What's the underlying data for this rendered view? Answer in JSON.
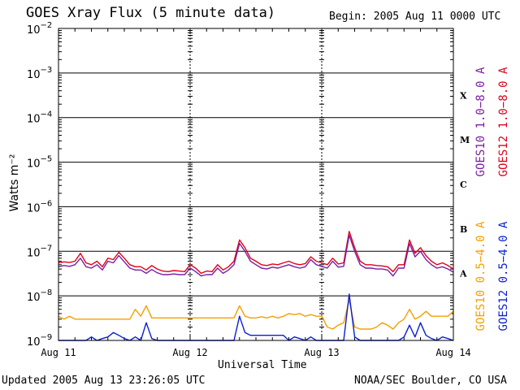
{
  "header": {
    "title": "GOES Xray Flux (5 minute data)",
    "begin": "Begin:  2005 Aug 11 0000 UTC"
  },
  "footer": {
    "updated": "Updated 2005 Aug 13 23:26:05 UTC",
    "credit": "NOAA/SEC Boulder, CO USA"
  },
  "colors": {
    "goes10_long": "#7a1fa2",
    "goes12_long": "#e0001b",
    "goes10_short": "#f5a000",
    "goes12_short": "#0a1fd6",
    "frame": "#000000"
  },
  "chart_data": {
    "type": "line",
    "title": "GOES Xray Flux (5 minute data)",
    "xlabel": "Universal Time",
    "ylabel": "Watts m⁻²",
    "y_scale": "log",
    "ylim": [
      1e-09,
      0.01
    ],
    "y_ticks": [
      {
        "value": 0.01,
        "base": "10",
        "exp": "−2"
      },
      {
        "value": 0.001,
        "base": "10",
        "exp": "−3"
      },
      {
        "value": 0.0001,
        "base": "10",
        "exp": "−4"
      },
      {
        "value": 1e-05,
        "base": "10",
        "exp": "−5"
      },
      {
        "value": 1e-06,
        "base": "10",
        "exp": "−6"
      },
      {
        "value": 1e-07,
        "base": "10",
        "exp": "−7"
      },
      {
        "value": 1e-08,
        "base": "10",
        "exp": "−8"
      },
      {
        "value": 1e-09,
        "base": "10",
        "exp": "−9"
      }
    ],
    "xlim": [
      0,
      72
    ],
    "x_ticks": [
      {
        "value": 0,
        "label": "Aug 11"
      },
      {
        "value": 24,
        "label": "Aug 12"
      },
      {
        "value": 48,
        "label": "Aug 13"
      },
      {
        "value": 72,
        "label": "Aug 14"
      }
    ],
    "class_labels": [
      {
        "value": 0.0001,
        "label": "X"
      },
      {
        "value": 1e-05,
        "label": "M"
      },
      {
        "value": 1e-06,
        "label": "C"
      },
      {
        "value": 1e-07,
        "label": "B"
      },
      {
        "value": 1e-08,
        "label": "A"
      }
    ],
    "legend_right": [
      {
        "text": "GOES10 1.0−8.0 A",
        "color": "#7a1fa2"
      },
      {
        "text": "GOES12 1.0−8.0 A",
        "color": "#e0001b"
      },
      {
        "text": "GOES10 0.5−4.0 A",
        "color": "#f5a000"
      },
      {
        "text": "GOES12 0.5−4.0 A",
        "color": "#0a1fd6"
      }
    ],
    "series": [
      {
        "name": "GOES12 1.0-8.0 A",
        "color": "#e0001b",
        "x": [
          0,
          1,
          2,
          3,
          4,
          5,
          6,
          7,
          8,
          9,
          10,
          11,
          12,
          13,
          14,
          15,
          16,
          17,
          18,
          19,
          20,
          21,
          22,
          23,
          24,
          25,
          26,
          27,
          28,
          29,
          30,
          31,
          32,
          33,
          34,
          35,
          36,
          37,
          38,
          39,
          40,
          41,
          42,
          43,
          44,
          45,
          46,
          47,
          48,
          49,
          50,
          51,
          52,
          53,
          54,
          55,
          56,
          57,
          58,
          59,
          60,
          61,
          62,
          63,
          64,
          65,
          66,
          67,
          68,
          69,
          70,
          71,
          72
        ],
        "y": [
          5.5e-08,
          5.8e-08,
          5.6e-08,
          6e-08,
          9e-08,
          5.5e-08,
          5e-08,
          6e-08,
          4.5e-08,
          7e-08,
          6.5e-08,
          9.5e-08,
          7e-08,
          5e-08,
          4.5e-08,
          4.5e-08,
          3.8e-08,
          4.8e-08,
          4e-08,
          3.6e-08,
          3.5e-08,
          3.7e-08,
          3.6e-08,
          3.5e-08,
          5e-08,
          4.2e-08,
          3.2e-08,
          3.6e-08,
          3.5e-08,
          5e-08,
          3.8e-08,
          4.5e-08,
          6e-08,
          1.8e-07,
          1.2e-07,
          7e-08,
          6e-08,
          5e-08,
          4.8e-08,
          5.2e-08,
          5e-08,
          5.5e-08,
          6e-08,
          5.3e-08,
          5e-08,
          5.3e-08,
          7.5e-08,
          6e-08,
          5.5e-08,
          5e-08,
          7e-08,
          5.2e-08,
          5.5e-08,
          2.8e-07,
          1.2e-07,
          6e-08,
          5e-08,
          5e-08,
          4.8e-08,
          4.7e-08,
          4.5e-08,
          3.5e-08,
          5e-08,
          5e-08,
          1.8e-07,
          9e-08,
          1.2e-07,
          8e-08,
          6e-08,
          5e-08,
          5.5e-08,
          4.8e-08,
          4e-08
        ]
      },
      {
        "name": "GOES10 1.0-8.0 A",
        "color": "#7a1fa2",
        "x": [
          0,
          1,
          2,
          3,
          4,
          5,
          6,
          7,
          8,
          9,
          10,
          11,
          12,
          13,
          14,
          15,
          16,
          17,
          18,
          19,
          20,
          21,
          22,
          23,
          24,
          25,
          26,
          27,
          28,
          29,
          30,
          31,
          32,
          33,
          34,
          35,
          36,
          37,
          38,
          39,
          40,
          41,
          42,
          43,
          44,
          45,
          46,
          47,
          48,
          49,
          50,
          51,
          52,
          53,
          54,
          55,
          56,
          57,
          58,
          59,
          60,
          61,
          62,
          63,
          64,
          65,
          66,
          67,
          68,
          69,
          70,
          71,
          72
        ],
        "y": [
          4.5e-08,
          4.8e-08,
          4.6e-08,
          5e-08,
          7e-08,
          4.5e-08,
          4.2e-08,
          5e-08,
          3.8e-08,
          6e-08,
          5.5e-08,
          8e-08,
          5.8e-08,
          4.2e-08,
          3.8e-08,
          3.8e-08,
          3.2e-08,
          3.9e-08,
          3.3e-08,
          3e-08,
          3e-08,
          3.1e-08,
          3e-08,
          3e-08,
          4.2e-08,
          3.5e-08,
          2.8e-08,
          3e-08,
          3e-08,
          4.2e-08,
          3.2e-08,
          3.8e-08,
          5e-08,
          1.5e-07,
          1e-07,
          6e-08,
          5e-08,
          4.2e-08,
          4e-08,
          4.4e-08,
          4.2e-08,
          4.6e-08,
          5e-08,
          4.5e-08,
          4.2e-08,
          4.5e-08,
          6.5e-08,
          5e-08,
          4.6e-08,
          4.2e-08,
          6e-08,
          4.4e-08,
          4.6e-08,
          2.3e-07,
          1e-07,
          5e-08,
          4.2e-08,
          4.2e-08,
          4e-08,
          4e-08,
          3.8e-08,
          2.8e-08,
          4.2e-08,
          4.2e-08,
          1.5e-07,
          7.5e-08,
          1e-07,
          6.5e-08,
          5e-08,
          4.2e-08,
          4.5e-08,
          4e-08,
          3.4e-08
        ]
      },
      {
        "name": "GOES10 0.5-4.0 A",
        "color": "#f5a000",
        "x": [
          0,
          1,
          2,
          3,
          4,
          5,
          6,
          7,
          8,
          9,
          10,
          11,
          12,
          13,
          14,
          15,
          16,
          17,
          18,
          19,
          20,
          21,
          22,
          23,
          24,
          25,
          26,
          27,
          28,
          29,
          30,
          31,
          32,
          33,
          34,
          35,
          36,
          37,
          38,
          39,
          40,
          41,
          42,
          43,
          44,
          45,
          46,
          47,
          48,
          49,
          50,
          51,
          52,
          53,
          54,
          55,
          56,
          57,
          58,
          59,
          60,
          61,
          62,
          63,
          64,
          65,
          66,
          67,
          68,
          69,
          70,
          71,
          72
        ],
        "y": [
          3.5e-09,
          3e-09,
          3.5e-09,
          3e-09,
          3e-09,
          3e-09,
          3e-09,
          3e-09,
          3e-09,
          3e-09,
          3e-09,
          3e-09,
          3e-09,
          3e-09,
          5e-09,
          3.5e-09,
          6e-09,
          3.2e-09,
          3.2e-09,
          3.2e-09,
          3.2e-09,
          3.2e-09,
          3.2e-09,
          3.2e-09,
          3.2e-09,
          3.2e-09,
          3.2e-09,
          3.2e-09,
          3.2e-09,
          3.2e-09,
          3.2e-09,
          3.2e-09,
          3.2e-09,
          6e-09,
          3.5e-09,
          3.2e-09,
          3.2e-09,
          3.4e-09,
          3.2e-09,
          3.5e-09,
          3.2e-09,
          3.5e-09,
          4e-09,
          3.8e-09,
          4e-09,
          3.5e-09,
          3.8e-09,
          3.5e-09,
          3.5e-09,
          2e-09,
          1.8e-09,
          2.2e-09,
          2.5e-09,
          8e-09,
          2e-09,
          1.8e-09,
          1.8e-09,
          1.8e-09,
          2e-09,
          2.5e-09,
          2.2e-09,
          1.8e-09,
          2.5e-09,
          3e-09,
          5e-09,
          3e-09,
          3.5e-09,
          4.5e-09,
          3.5e-09,
          3.5e-09,
          3.5e-09,
          3.5e-09,
          4.5e-09
        ]
      },
      {
        "name": "GOES12 0.5-4.0 A",
        "color": "#0a1fd6",
        "x": [
          0,
          1,
          2,
          3,
          4,
          5,
          6,
          7,
          8,
          9,
          10,
          11,
          12,
          13,
          14,
          15,
          16,
          17,
          18,
          19,
          20,
          21,
          22,
          23,
          24,
          25,
          26,
          27,
          28,
          29,
          30,
          31,
          32,
          33,
          34,
          35,
          36,
          37,
          38,
          39,
          40,
          41,
          42,
          43,
          44,
          45,
          46,
          47,
          48,
          49,
          50,
          51,
          52,
          53,
          54,
          55,
          56,
          57,
          58,
          59,
          60,
          61,
          62,
          63,
          64,
          65,
          66,
          67,
          68,
          69,
          70,
          71,
          72
        ],
        "y": [
          1e-09,
          1e-09,
          1e-09,
          1e-09,
          1e-09,
          1e-09,
          1.2e-09,
          1e-09,
          1.1e-09,
          1.2e-09,
          1.5e-09,
          1.3e-09,
          1.1e-09,
          1e-09,
          1.2e-09,
          1e-09,
          2.5e-09,
          1.1e-09,
          1e-09,
          1e-09,
          1e-09,
          1e-09,
          1e-09,
          1e-09,
          1e-09,
          1e-09,
          1e-09,
          1e-09,
          1e-09,
          1e-09,
          1e-09,
          1e-09,
          1e-09,
          3.5e-09,
          1.5e-09,
          1.3e-09,
          1.3e-09,
          1.3e-09,
          1.3e-09,
          1.3e-09,
          1.3e-09,
          1.3e-09,
          1e-09,
          1.2e-09,
          1.1e-09,
          1e-09,
          1.2e-09,
          1e-09,
          1e-09,
          1e-09,
          1e-09,
          1e-09,
          1e-09,
          1.1e-08,
          1.2e-09,
          1e-09,
          1e-09,
          1e-09,
          1e-09,
          1e-09,
          1e-09,
          1e-09,
          1e-09,
          1.2e-09,
          2.2e-09,
          1.2e-09,
          2.5e-09,
          1.3e-09,
          1.1e-09,
          1e-09,
          1.2e-09,
          1.1e-09,
          1e-09
        ]
      }
    ]
  }
}
